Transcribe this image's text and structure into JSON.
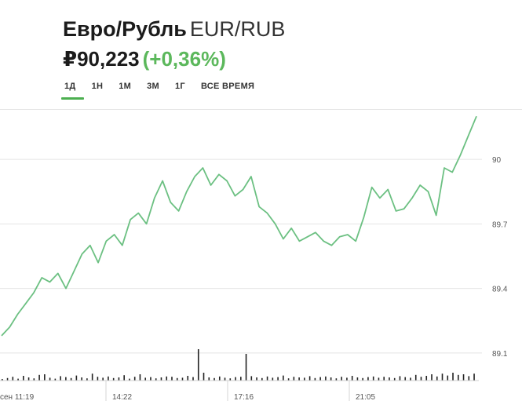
{
  "header": {
    "name": "Евро/Рубль",
    "ticker": "EUR/RUB",
    "price": "₽90,223",
    "change": "(+0,36%)"
  },
  "tabs": [
    {
      "label": "1Д",
      "active": true
    },
    {
      "label": "1Н",
      "active": false
    },
    {
      "label": "1М",
      "active": false
    },
    {
      "label": "3М",
      "active": false
    },
    {
      "label": "1Г",
      "active": false
    },
    {
      "label": "ВСЕ ВРЕМЯ",
      "active": false
    }
  ],
  "colors": {
    "line": "#6cc082",
    "accent": "#4caf50",
    "volume": "#222222",
    "grid": "#e4e4e4"
  },
  "chart_data": {
    "type": "line",
    "x_tick_labels": [
      "сен 11:19",
      "14:22",
      "17:16",
      "21:05"
    ],
    "y_tick_labels": [
      "90",
      "89.7",
      "89.4",
      "89.1"
    ],
    "y_ticks": [
      90.0,
      89.7,
      89.4,
      89.1
    ],
    "ylim": [
      88.99,
      90.23
    ],
    "grid": true,
    "series": [
      {
        "values": [
          89.18,
          89.22,
          89.28,
          89.33,
          89.38,
          89.45,
          89.43,
          89.47,
          89.4,
          89.48,
          89.56,
          89.6,
          89.52,
          89.62,
          89.65,
          89.6,
          89.72,
          89.75,
          89.7,
          89.82,
          89.9,
          89.8,
          89.76,
          89.85,
          89.92,
          89.96,
          89.88,
          89.93,
          89.9,
          89.83,
          89.86,
          89.92,
          89.78,
          89.75,
          89.7,
          89.63,
          89.68,
          89.62,
          89.64,
          89.66,
          89.62,
          89.6,
          89.64,
          89.65,
          89.62,
          89.73,
          89.87,
          89.82,
          89.86,
          89.76,
          89.77,
          89.82,
          89.88,
          89.85,
          89.74,
          89.96,
          89.94,
          90.02,
          90.11,
          90.2
        ]
      }
    ],
    "volume": [
      0.05,
      0.08,
      0.12,
      0.06,
      0.15,
      0.1,
      0.07,
      0.18,
      0.2,
      0.09,
      0.06,
      0.14,
      0.11,
      0.08,
      0.16,
      0.1,
      0.07,
      0.22,
      0.12,
      0.09,
      0.13,
      0.08,
      0.1,
      0.17,
      0.06,
      0.12,
      0.2,
      0.09,
      0.11,
      0.07,
      0.1,
      0.13,
      0.12,
      0.08,
      0.09,
      0.15,
      0.11,
      1.0,
      0.25,
      0.1,
      0.08,
      0.13,
      0.09,
      0.07,
      0.11,
      0.12,
      0.85,
      0.14,
      0.1,
      0.08,
      0.13,
      0.09,
      0.11,
      0.16,
      0.07,
      0.12,
      0.1,
      0.09,
      0.14,
      0.08,
      0.11,
      0.13,
      0.1,
      0.07,
      0.12,
      0.09,
      0.15,
      0.1,
      0.08,
      0.11,
      0.13,
      0.09,
      0.12,
      0.1,
      0.08,
      0.14,
      0.11,
      0.09,
      0.18,
      0.12,
      0.15,
      0.2,
      0.13,
      0.22,
      0.16,
      0.25,
      0.18,
      0.2,
      0.14,
      0.22
    ]
  }
}
